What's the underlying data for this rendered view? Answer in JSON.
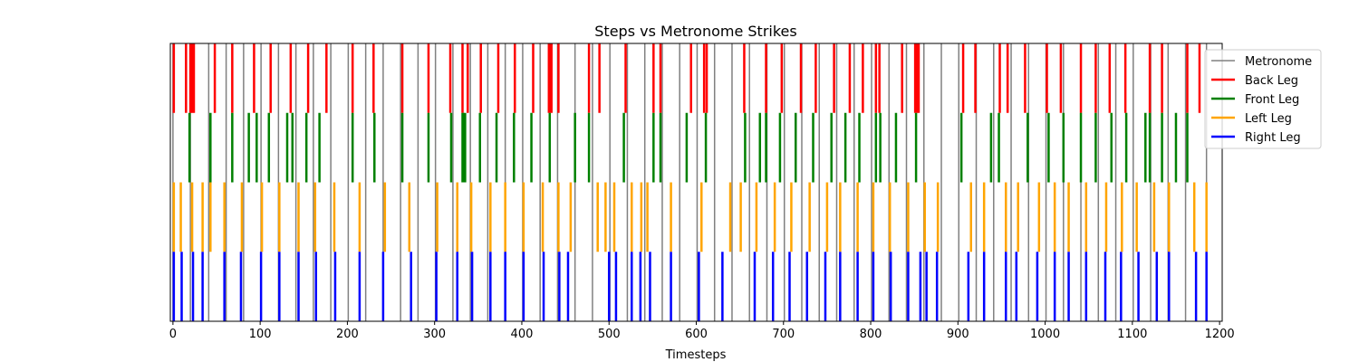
{
  "chart_data": {
    "type": "event-raster",
    "title": "Steps vs Metronome Strikes",
    "xlabel": "Timesteps",
    "ylabel": "",
    "xlim": [
      -3,
      1203
    ],
    "xticks": [
      0,
      100,
      200,
      300,
      400,
      500,
      600,
      700,
      800,
      900,
      1000,
      1100,
      1200
    ],
    "xtick_labels": [
      "0",
      "100",
      "200",
      "300",
      "400",
      "500",
      "600",
      "700",
      "800",
      "900",
      "1000",
      "1100",
      "1200"
    ],
    "grid": false,
    "legend_position": "top-right",
    "series": [
      {
        "name": "Metronome",
        "color": "#808080",
        "span": "full",
        "events": [
          0,
          20,
          41,
          61,
          81,
          101,
          121,
          141,
          161,
          181,
          201,
          221,
          241,
          261,
          281,
          301,
          321,
          341,
          361,
          381,
          401,
          421,
          441,
          461,
          481,
          501,
          521,
          541,
          561,
          581,
          601,
          621,
          641,
          661,
          681,
          701,
          721,
          741,
          761,
          781,
          801,
          821,
          841,
          861,
          881,
          901,
          921,
          941,
          961,
          981,
          1001,
          1021,
          1041,
          1061,
          1081,
          1101,
          1121,
          1141,
          1161,
          1185
        ]
      },
      {
        "name": "Back Leg",
        "color": "#ff0000",
        "span": "top",
        "events": [
          1,
          15,
          20,
          22,
          24,
          48,
          68,
          93,
          112,
          135,
          155,
          176,
          206,
          230,
          263,
          293,
          318,
          332,
          338,
          353,
          373,
          392,
          413,
          431,
          432,
          434,
          442,
          477,
          489,
          519,
          551,
          559,
          594,
          609,
          612,
          655,
          680,
          698,
          720,
          737,
          758,
          776,
          791,
          806,
          810,
          836,
          851,
          853,
          855,
          906,
          920,
          948,
          957,
          977,
          1002,
          1018,
          1041,
          1058,
          1074,
          1092,
          1120,
          1134,
          1163,
          1177
        ]
      },
      {
        "name": "Front Leg",
        "color": "#008000",
        "span": "upper-middle",
        "events": [
          19,
          43,
          68,
          87,
          96,
          110,
          131,
          137,
          153,
          168,
          206,
          231,
          263,
          293,
          319,
          332,
          333,
          335,
          352,
          371,
          391,
          411,
          432,
          461,
          477,
          517,
          551,
          559,
          589,
          611,
          656,
          673,
          680,
          696,
          714,
          734,
          755,
          771,
          787,
          806,
          811,
          829,
          852,
          904,
          938,
          947,
          980,
          1004,
          1021,
          1041,
          1058,
          1076,
          1093,
          1115,
          1120,
          1134,
          1150,
          1163
        ]
      },
      {
        "name": "Left Leg",
        "color": "#ffa500",
        "span": "lower-middle",
        "events": [
          1,
          9,
          22,
          34,
          43,
          59,
          79,
          102,
          122,
          144,
          163,
          185,
          214,
          243,
          271,
          303,
          326,
          342,
          364,
          381,
          402,
          424,
          442,
          456,
          487,
          496,
          506,
          526,
          537,
          544,
          571,
          606,
          639,
          651,
          669,
          690,
          709,
          730,
          750,
          765,
          785,
          803,
          822,
          843,
          862,
          877,
          915,
          930,
          955,
          969,
          993,
          1011,
          1027,
          1047,
          1070,
          1088,
          1105,
          1125,
          1142,
          1171,
          1185
        ]
      },
      {
        "name": "Right Leg",
        "color": "#0000ff",
        "span": "bottom",
        "events": [
          1,
          10,
          23,
          34,
          59,
          78,
          101,
          122,
          144,
          164,
          186,
          214,
          241,
          273,
          302,
          326,
          343,
          364,
          381,
          402,
          425,
          443,
          453,
          500,
          508,
          526,
          536,
          547,
          571,
          603,
          630,
          667,
          688,
          707,
          727,
          748,
          765,
          785,
          803,
          823,
          843,
          857,
          864,
          876,
          912,
          930,
          955,
          967,
          991,
          1011,
          1027,
          1047,
          1069,
          1087,
          1107,
          1128,
          1142,
          1173,
          1185
        ]
      }
    ]
  }
}
